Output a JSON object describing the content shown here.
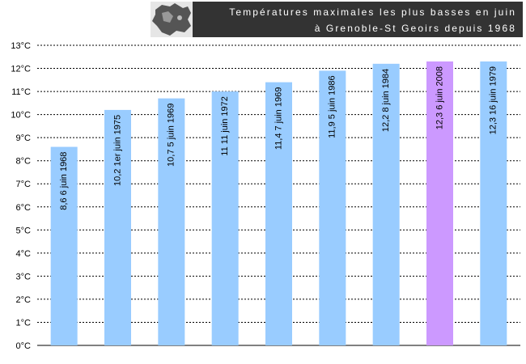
{
  "title": {
    "line1": "Températures maximales les plus basses en juin",
    "line2": "à Grenoble-St Geoirs depuis 1968"
  },
  "logo_icon": "region-map-icon",
  "colors": {
    "bar": "#99ccff",
    "highlight": "#cc99ff",
    "title_bg": "#333333",
    "grid": "#000000"
  },
  "chart_data": {
    "type": "bar",
    "title": "Températures maximales les plus basses en juin à Grenoble-St Geoirs depuis 1968",
    "xlabel": "",
    "ylabel": "",
    "ylim": [
      0,
      13
    ],
    "yticks": [
      "0°C",
      "1°C",
      "2°C",
      "3°C",
      "4°C",
      "5°C",
      "6°C",
      "7°C",
      "8°C",
      "9°C",
      "10°C",
      "11°C",
      "12°C",
      "13°C"
    ],
    "grid": true,
    "categories": [
      "6 juin 1968",
      "1er juin 1975",
      "5 juin 1969",
      "11 juin 1972",
      "7 juin 1969",
      "5 juin 1986",
      "8 juin 1984",
      "6 juin 2008",
      "16 juin 1979"
    ],
    "values": [
      8.6,
      10.2,
      10.7,
      11,
      11.4,
      11.9,
      12.2,
      12.3,
      12.3
    ],
    "labels": [
      "8,6  6 juin 1968",
      "10,2  1er juin 1975",
      "10,7  5 juin 1969",
      "11  11 juin 1972",
      "11,4   7 juin 1969",
      "11,9  5 juin 1986",
      "12,2  8 juin 1984",
      "12,3  6 juin 2008",
      "12,3  16 juin 1979"
    ],
    "highlight_index": 7
  }
}
